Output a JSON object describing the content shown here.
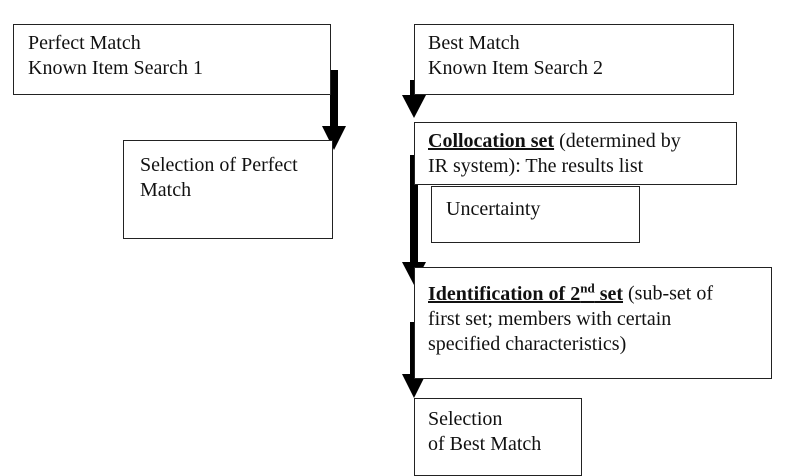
{
  "boxes": {
    "perfect_match": {
      "line1": "Perfect Match",
      "line2": "Known Item Search 1"
    },
    "selection_perfect": {
      "line1": "Selection of Perfect",
      "line2": "Match"
    },
    "best_match": {
      "line1": "Best Match",
      "line2": "Known Item Search 2"
    },
    "collocation": {
      "title": "Collocation set",
      "rest1": " (determined by",
      "line2": "IR system): The results list"
    },
    "uncertainty": {
      "text": "Uncertainty"
    },
    "identification": {
      "title_a": "Identification of 2",
      "title_sup": "nd",
      "title_b": " set",
      "rest1": " (sub-set of",
      "line2": "first set; members with certain",
      "line3": "specified characteristics)"
    },
    "selection_best": {
      "line1": "Selection",
      "line2": "of Best Match"
    }
  },
  "colors": {
    "border": "#222222",
    "arrow": "#000000",
    "background": "#ffffff"
  }
}
